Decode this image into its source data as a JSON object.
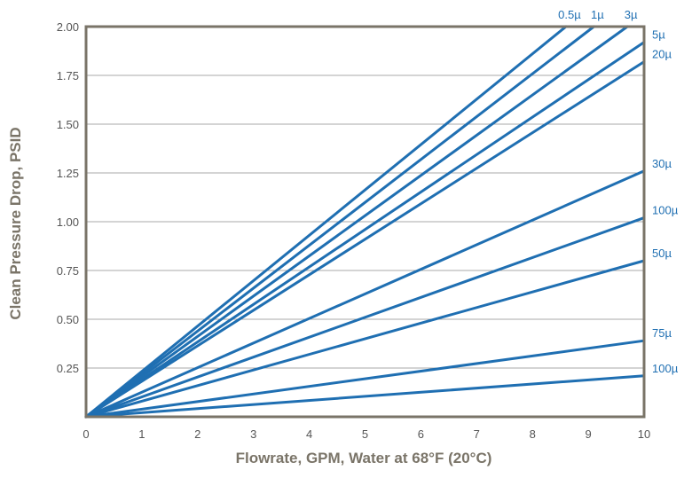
{
  "colors": {
    "line": "#1f6fb2",
    "frame": "#7a7468",
    "grid": "#aaaaaa",
    "label": "#1f6fb2",
    "tick": "#555555",
    "axis_title": "#7a7468"
  },
  "chart_data": {
    "type": "line",
    "title": "",
    "xlabel": "Flowrate, GPM, Water at 68°F (20°C)",
    "ylabel": "Clean Pressure Drop, PSID",
    "xlim": [
      0,
      10
    ],
    "ylim": [
      0,
      2.0
    ],
    "x_ticks": [
      "0",
      "1",
      "2",
      "3",
      "4",
      "5",
      "6",
      "7",
      "8",
      "9",
      "10"
    ],
    "y_ticks": [
      "0.25",
      "0.50",
      "0.75",
      "1.00",
      "1.25",
      "1.50",
      "1.75",
      "2.00"
    ],
    "grid": {
      "horizontal": true,
      "vertical": false
    },
    "series": [
      {
        "name": "0.5µ",
        "points": [
          [
            0,
            0
          ],
          [
            8.6,
            2.0
          ]
        ]
      },
      {
        "name": "1µ",
        "points": [
          [
            0,
            0
          ],
          [
            9.1,
            2.0
          ]
        ]
      },
      {
        "name": "3µ",
        "points": [
          [
            0,
            0
          ],
          [
            9.7,
            2.0
          ]
        ]
      },
      {
        "name": "5µ",
        "points": [
          [
            0,
            0
          ],
          [
            10,
            1.92
          ]
        ]
      },
      {
        "name": "20µ",
        "points": [
          [
            0,
            0
          ],
          [
            10,
            1.82
          ]
        ]
      },
      {
        "name": "30µ",
        "points": [
          [
            0,
            0
          ],
          [
            10,
            1.26
          ]
        ]
      },
      {
        "name": "100µ",
        "points": [
          [
            0,
            0
          ],
          [
            10,
            1.02
          ]
        ]
      },
      {
        "name": "50µ",
        "points": [
          [
            0,
            0
          ],
          [
            10,
            0.8
          ]
        ]
      },
      {
        "name": "75µ",
        "points": [
          [
            0,
            0
          ],
          [
            10,
            0.39
          ]
        ]
      },
      {
        "name": "100µ",
        "points": [
          [
            0,
            0
          ],
          [
            10,
            0.21
          ]
        ]
      }
    ]
  }
}
